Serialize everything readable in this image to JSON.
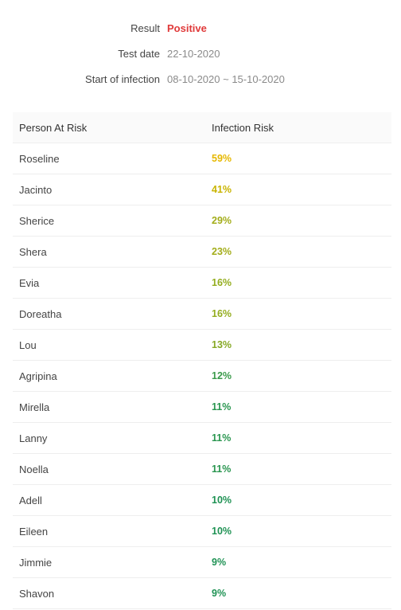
{
  "summary": {
    "result_label": "Result",
    "result_value": "Positive",
    "test_date_label": "Test date",
    "test_date_value": "22-10-2020",
    "infection_label": "Start of infection",
    "infection_value": "08-10-2020 ~ 15-10-2020"
  },
  "table": {
    "headers": [
      "Person At Risk",
      "Infection Risk"
    ],
    "rows": [
      {
        "name": "Roseline",
        "risk": "59%",
        "color": "#e6b800"
      },
      {
        "name": "Jacinto",
        "risk": "41%",
        "color": "#c9b400"
      },
      {
        "name": "Sherice",
        "risk": "29%",
        "color": "#a3ad1a"
      },
      {
        "name": "Shera",
        "risk": "23%",
        "color": "#a3ad1a"
      },
      {
        "name": "Evia",
        "risk": "16%",
        "color": "#94ad1f"
      },
      {
        "name": "Doreatha",
        "risk": "16%",
        "color": "#94ad1f"
      },
      {
        "name": "Lou",
        "risk": "13%",
        "color": "#86a824"
      },
      {
        "name": "Agripina",
        "risk": "12%",
        "color": "#3a9a4a"
      },
      {
        "name": "Mirella",
        "risk": "11%",
        "color": "#2a9650"
      },
      {
        "name": "Lanny",
        "risk": "11%",
        "color": "#2a9650"
      },
      {
        "name": "Noella",
        "risk": "11%",
        "color": "#2a9650"
      },
      {
        "name": "Adell",
        "risk": "10%",
        "color": "#1f9254"
      },
      {
        "name": "Eileen",
        "risk": "10%",
        "color": "#1f9254"
      },
      {
        "name": "Jimmie",
        "risk": "9%",
        "color": "#1f9254"
      },
      {
        "name": "Shavon",
        "risk": "9%",
        "color": "#1f9254"
      }
    ]
  }
}
